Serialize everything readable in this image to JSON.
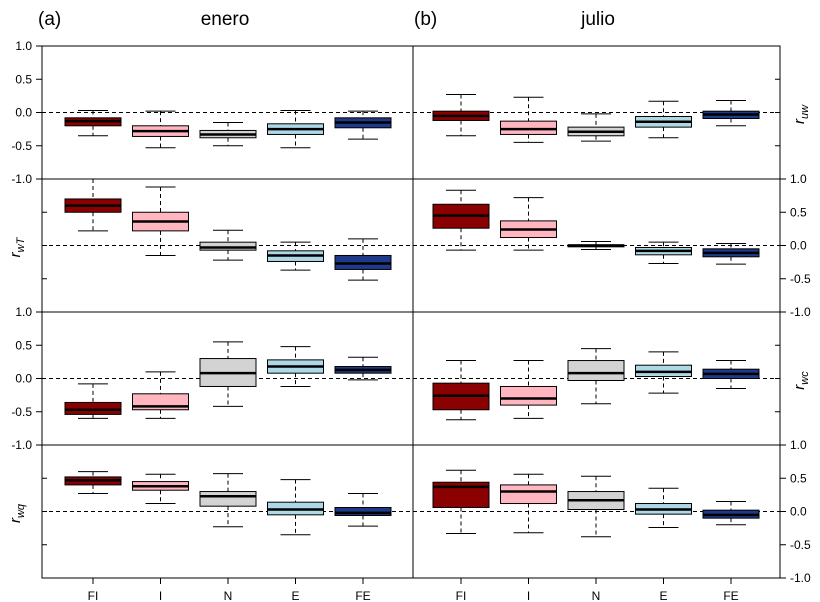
{
  "figure": {
    "panels": [
      {
        "letter": "(a)",
        "month": "enero"
      },
      {
        "letter": "(b)",
        "month": "julio"
      }
    ],
    "row_labels": [
      {
        "main": "r",
        "sub": "uw",
        "side": "right"
      },
      {
        "main": "r",
        "sub": "wT",
        "side": "left"
      },
      {
        "main": "r",
        "sub": "wc",
        "side": "right"
      },
      {
        "main": "r",
        "sub": "wq",
        "side": "left"
      }
    ],
    "row_ticks": [
      [
        "1.0",
        "0.5",
        "0.0",
        "-0.5",
        "-1.0"
      ],
      [
        "1.0",
        "0.5",
        "0.0",
        "-0.5",
        "-1.0"
      ],
      [
        "1.0",
        "0.5",
        "0.0",
        "-0.5",
        "-1.0"
      ],
      [
        "1.0",
        "0.5",
        "0.0",
        "-0.5",
        "-1.0"
      ]
    ]
  },
  "colors": {
    "FI": "#8b0000",
    "I": "#ffb6c1",
    "N": "#d3d3d3",
    "E": "#add8e6",
    "FE": "#1f3a8a"
  },
  "chart_data": {
    "type": "boxplot",
    "categories": [
      "FI",
      "I",
      "N",
      "E",
      "FE"
    ],
    "ylim": [
      -1,
      1
    ],
    "grid": false,
    "reference_line": 0,
    "panels": [
      {
        "row": "r_uw",
        "column": "enero",
        "boxes": [
          {
            "min": -0.35,
            "q1": -0.2,
            "median": -0.13,
            "q3": -0.08,
            "max": 0.03
          },
          {
            "min": -0.53,
            "q1": -0.36,
            "median": -0.28,
            "q3": -0.2,
            "max": 0.02
          },
          {
            "min": -0.5,
            "q1": -0.38,
            "median": -0.33,
            "q3": -0.27,
            "max": -0.15
          },
          {
            "min": -0.53,
            "q1": -0.33,
            "median": -0.25,
            "q3": -0.17,
            "max": 0.03
          },
          {
            "min": -0.4,
            "q1": -0.23,
            "median": -0.15,
            "q3": -0.08,
            "max": 0.02
          }
        ]
      },
      {
        "row": "r_uw",
        "column": "julio",
        "boxes": [
          {
            "min": -0.35,
            "q1": -0.12,
            "median": -0.05,
            "q3": 0.02,
            "max": 0.27
          },
          {
            "min": -0.45,
            "q1": -0.33,
            "median": -0.25,
            "q3": -0.13,
            "max": 0.23
          },
          {
            "min": -0.43,
            "q1": -0.35,
            "median": -0.29,
            "q3": -0.22,
            "max": -0.02
          },
          {
            "min": -0.38,
            "q1": -0.22,
            "median": -0.14,
            "q3": -0.06,
            "max": 0.17
          },
          {
            "min": -0.2,
            "q1": -0.09,
            "median": -0.03,
            "q3": 0.02,
            "max": 0.18
          }
        ]
      },
      {
        "row": "r_wT",
        "column": "enero",
        "boxes": [
          {
            "min": 0.22,
            "q1": 0.5,
            "median": 0.6,
            "q3": 0.7,
            "max": 1.0
          },
          {
            "min": -0.15,
            "q1": 0.22,
            "median": 0.36,
            "q3": 0.5,
            "max": 0.88
          },
          {
            "min": -0.22,
            "q1": -0.07,
            "median": -0.03,
            "q3": 0.05,
            "max": 0.23
          },
          {
            "min": -0.37,
            "q1": -0.24,
            "median": -0.15,
            "q3": -0.08,
            "max": 0.05
          },
          {
            "min": -0.52,
            "q1": -0.36,
            "median": -0.27,
            "q3": -0.15,
            "max": 0.1
          }
        ]
      },
      {
        "row": "r_wT",
        "column": "julio",
        "boxes": [
          {
            "min": -0.07,
            "q1": 0.26,
            "median": 0.45,
            "q3": 0.62,
            "max": 0.83
          },
          {
            "min": -0.07,
            "q1": 0.12,
            "median": 0.24,
            "q3": 0.37,
            "max": 0.72
          },
          {
            "min": -0.06,
            "q1": -0.02,
            "median": 0.0,
            "q3": 0.01,
            "max": 0.06
          },
          {
            "min": -0.27,
            "q1": -0.14,
            "median": -0.08,
            "q3": -0.03,
            "max": 0.05
          },
          {
            "min": -0.28,
            "q1": -0.17,
            "median": -0.11,
            "q3": -0.05,
            "max": 0.03
          }
        ]
      },
      {
        "row": "r_wc",
        "column": "enero",
        "boxes": [
          {
            "min": -0.6,
            "q1": -0.54,
            "median": -0.47,
            "q3": -0.36,
            "max": -0.08
          },
          {
            "min": -0.6,
            "q1": -0.47,
            "median": -0.42,
            "q3": -0.23,
            "max": 0.1
          },
          {
            "min": -0.42,
            "q1": -0.12,
            "median": 0.08,
            "q3": 0.3,
            "max": 0.55
          },
          {
            "min": -0.12,
            "q1": 0.08,
            "median": 0.18,
            "q3": 0.28,
            "max": 0.48
          },
          {
            "min": -0.02,
            "q1": 0.08,
            "median": 0.13,
            "q3": 0.18,
            "max": 0.32
          }
        ]
      },
      {
        "row": "r_wc",
        "column": "julio",
        "boxes": [
          {
            "min": -0.62,
            "q1": -0.47,
            "median": -0.26,
            "q3": -0.07,
            "max": 0.27
          },
          {
            "min": -0.6,
            "q1": -0.4,
            "median": -0.3,
            "q3": -0.12,
            "max": 0.27
          },
          {
            "min": -0.38,
            "q1": -0.03,
            "median": 0.08,
            "q3": 0.27,
            "max": 0.45
          },
          {
            "min": -0.22,
            "q1": 0.03,
            "median": 0.1,
            "q3": 0.2,
            "max": 0.4
          },
          {
            "min": -0.15,
            "q1": 0.0,
            "median": 0.07,
            "q3": 0.14,
            "max": 0.27
          }
        ]
      },
      {
        "row": "r_wq",
        "column": "enero",
        "boxes": [
          {
            "min": 0.27,
            "q1": 0.4,
            "median": 0.47,
            "q3": 0.52,
            "max": 0.6
          },
          {
            "min": 0.12,
            "q1": 0.32,
            "median": 0.38,
            "q3": 0.45,
            "max": 0.56
          },
          {
            "min": -0.23,
            "q1": 0.08,
            "median": 0.23,
            "q3": 0.3,
            "max": 0.57
          },
          {
            "min": -0.35,
            "q1": -0.05,
            "median": 0.03,
            "q3": 0.14,
            "max": 0.48
          },
          {
            "min": -0.22,
            "q1": -0.06,
            "median": -0.02,
            "q3": 0.06,
            "max": 0.27
          }
        ]
      },
      {
        "row": "r_wq",
        "column": "julio",
        "boxes": [
          {
            "min": -0.33,
            "q1": 0.06,
            "median": 0.37,
            "q3": 0.44,
            "max": 0.62
          },
          {
            "min": -0.32,
            "q1": 0.12,
            "median": 0.3,
            "q3": 0.4,
            "max": 0.56
          },
          {
            "min": -0.38,
            "q1": 0.03,
            "median": 0.17,
            "q3": 0.3,
            "max": 0.53
          },
          {
            "min": -0.24,
            "q1": -0.04,
            "median": 0.03,
            "q3": 0.12,
            "max": 0.35
          },
          {
            "min": -0.2,
            "q1": -0.1,
            "median": -0.05,
            "q3": 0.02,
            "max": 0.15
          }
        ]
      }
    ]
  }
}
